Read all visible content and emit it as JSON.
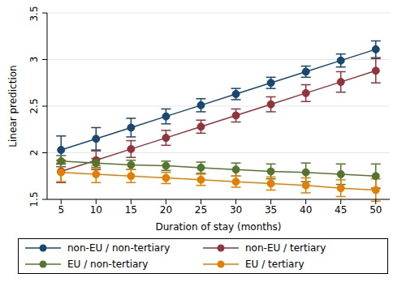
{
  "chart_data": {
    "type": "line",
    "x_label": "Duration of stay (months)",
    "y_label": "Linear prediction",
    "x": [
      5,
      10,
      15,
      20,
      25,
      30,
      35,
      40,
      45,
      50
    ],
    "xlim": [
      3,
      52
    ],
    "xticks": [
      5,
      10,
      15,
      20,
      25,
      30,
      35,
      40,
      45,
      50
    ],
    "ylim": [
      1.5,
      3.5
    ],
    "yticks": [
      1.5,
      2,
      2.5,
      3,
      3.5
    ],
    "grid": true,
    "legend": "bottom",
    "marker": "circle",
    "series": [
      {
        "name": "non-EU / non-tertiary",
        "color": "#1a476f",
        "values": [
          2.03,
          2.15,
          2.27,
          2.39,
          2.51,
          2.63,
          2.75,
          2.87,
          2.99,
          3.11
        ],
        "errors": [
          0.15,
          0.12,
          0.1,
          0.08,
          0.07,
          0.06,
          0.06,
          0.06,
          0.07,
          0.09
        ]
      },
      {
        "name": "non-EU / tertiary",
        "color": "#90353b",
        "values": [
          1.8,
          1.92,
          2.04,
          2.16,
          2.28,
          2.4,
          2.52,
          2.64,
          2.76,
          2.88
        ],
        "errors": [
          0.12,
          0.1,
          0.09,
          0.08,
          0.07,
          0.07,
          0.08,
          0.09,
          0.11,
          0.13
        ]
      },
      {
        "name": "EU / non-tertiary",
        "color": "#55752f",
        "values": [
          1.91,
          1.89,
          1.87,
          1.86,
          1.84,
          1.82,
          1.8,
          1.79,
          1.77,
          1.75
        ],
        "errors": [
          0.06,
          0.05,
          0.05,
          0.05,
          0.06,
          0.07,
          0.08,
          0.1,
          0.11,
          0.13
        ]
      },
      {
        "name": "EU / tertiary",
        "color": "#e37e00",
        "values": [
          1.79,
          1.77,
          1.75,
          1.73,
          1.71,
          1.69,
          1.67,
          1.65,
          1.62,
          1.6
        ],
        "errors": [
          0.1,
          0.09,
          0.07,
          0.06,
          0.06,
          0.06,
          0.07,
          0.08,
          0.09,
          0.12
        ]
      }
    ]
  }
}
